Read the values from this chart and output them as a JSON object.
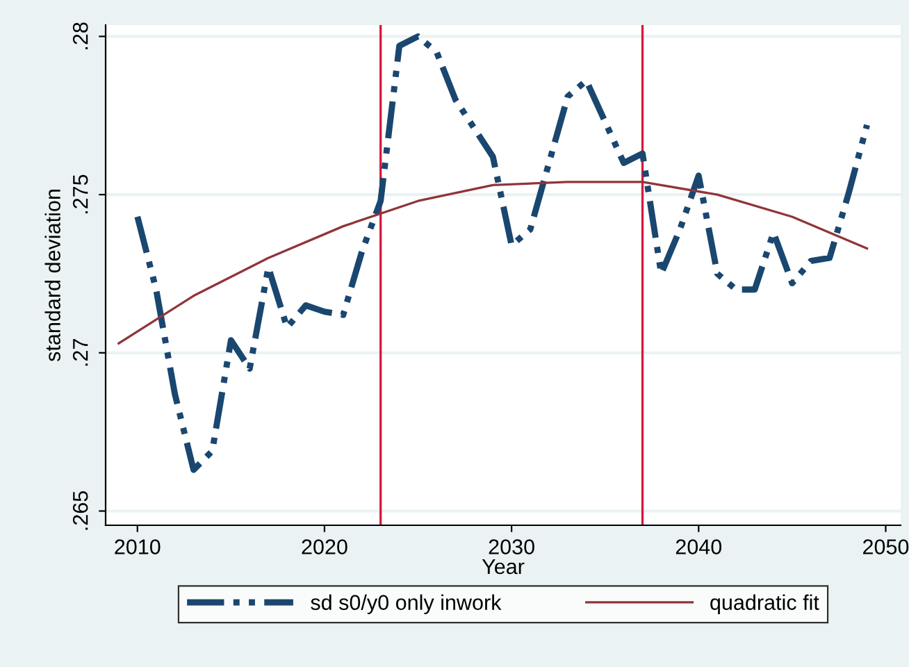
{
  "chart_data": {
    "type": "line",
    "xlabel": "Year",
    "ylabel": "standard deviation",
    "xlim": [
      2008.3,
      2050.8
    ],
    "xticks": [
      2010,
      2020,
      2030,
      2040,
      2050
    ],
    "ylim": [
      0.26455,
      0.28036
    ],
    "yticks": [
      {
        "value": 0.265,
        "label": ".265"
      },
      {
        "value": 0.27,
        "label": ".27"
      },
      {
        "value": 0.275,
        "label": ".275"
      },
      {
        "value": 0.28,
        "label": ".28"
      }
    ],
    "grid": "y",
    "legend": "bottom",
    "series": [
      {
        "name": "sd s0/y0 only inwork",
        "color": "#1a476f",
        "line_style": "dashed",
        "x": [
          2010,
          2011,
          2012,
          2013,
          2014,
          2015,
          2016,
          2017,
          2018,
          2019,
          2020,
          2021,
          2022,
          2023,
          2024,
          2025,
          2026,
          2027,
          2028,
          2029,
          2030,
          2031,
          2032,
          2033,
          2034,
          2035,
          2036,
          2037,
          2038,
          2039,
          2040,
          2041,
          2042,
          2043,
          2044,
          2045,
          2046,
          2047,
          2048,
          2049
        ],
        "values": [
          0.2743,
          0.272,
          0.2687,
          0.2663,
          0.2669,
          0.2704,
          0.2695,
          0.2727,
          0.2708,
          0.2715,
          0.2713,
          0.2712,
          0.2732,
          0.2748,
          0.2797,
          0.28,
          0.2795,
          0.278,
          0.2771,
          0.2762,
          0.2734,
          0.2739,
          0.276,
          0.2781,
          0.2786,
          0.2773,
          0.276,
          0.2763,
          0.2725,
          0.2739,
          0.2756,
          0.2725,
          0.272,
          0.272,
          0.2738,
          0.2722,
          0.2729,
          0.273,
          0.275,
          0.2772
        ]
      },
      {
        "name": "quadratic fit",
        "color": "#90353b",
        "line_style": "solid",
        "x": [
          2009,
          2013,
          2017,
          2021,
          2025,
          2029,
          2033,
          2037,
          2041,
          2045,
          2049
        ],
        "values": [
          0.2703,
          0.2718,
          0.273,
          0.274,
          0.2748,
          0.2753,
          0.2754,
          0.2754,
          0.275,
          0.2743,
          0.2733
        ]
      }
    ],
    "ref_lines": [
      {
        "axis": "x",
        "value": 2023,
        "color": "#d7193d"
      },
      {
        "axis": "x",
        "value": 2037,
        "color": "#d7193d"
      }
    ]
  }
}
